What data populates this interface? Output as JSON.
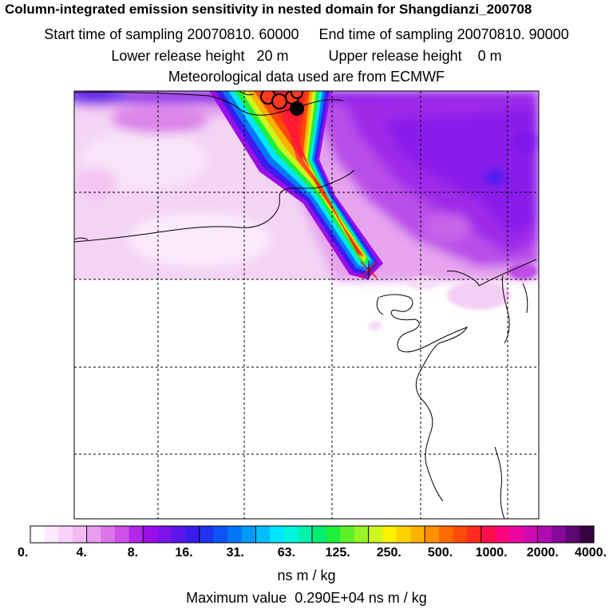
{
  "header": {
    "title": "Column-integrated emission sensitivity in nested domain for Shangdianzi_200708",
    "sampling_line": "Start time of sampling 20070810. 60000     End time of sampling 20070810. 90000",
    "height_line": "Lower release height   20 m          Upper release height    0 m",
    "met_line": "Meteorological data used are from ECMWF"
  },
  "colors": {
    "levels": [
      "#ffffff",
      "#fde8fd",
      "#f8d2f8",
      "#f2bbf2",
      "#ea9dee",
      "#dd75ea",
      "#cc4fe8",
      "#b227e8",
      "#9a0fe9",
      "#7e12ea",
      "#5b16ec",
      "#3a1cef",
      "#1e32f2",
      "#0b54f5",
      "#0077f8",
      "#009bfa",
      "#00c0fb",
      "#00e6fd",
      "#00f5e0",
      "#00f2ac",
      "#00ee72",
      "#1cf03a",
      "#5ef12a",
      "#98f426",
      "#cdf61f",
      "#fcf100",
      "#fed300",
      "#ffb200",
      "#ff9100",
      "#ff6a00",
      "#ff4a0a",
      "#ff2a1c",
      "#ff0f49",
      "#ff057c",
      "#ec05a0",
      "#d008b2",
      "#ad0cb1",
      "#85099a",
      "#5c0671",
      "#360340"
    ]
  },
  "chart_data": {
    "type": "heatmap",
    "title": "Column-integrated emission sensitivity in nested domain for Shangdianzi_200708",
    "variable": "Column-integrated emission sensitivity",
    "station": "Shangdianzi",
    "met_source": "ECMWF",
    "sampling_start": "20070810. 60000",
    "sampling_end": "20070810. 90000",
    "lower_release_height_m": 20,
    "upper_release_height_m": 0,
    "colorbar": {
      "tick_labels": [
        "0.",
        "4.",
        "8.",
        "16.",
        "31.",
        "63.",
        "125.",
        "250.",
        "500.",
        "1000.",
        "2000.",
        "4000."
      ],
      "tick_values": [
        0,
        4,
        8,
        16,
        31,
        63,
        125,
        250,
        500,
        1000,
        2000,
        4000
      ],
      "units": "ns m / kg"
    },
    "maximum_value_text": "Maximum value  0.290E+04 ns m / kg",
    "maximum_value": 2900,
    "plume_axis": [
      {
        "lon_frac": 0.695,
        "lat_frac": 0.0,
        "value": 2000
      },
      {
        "lon_frac": 0.71,
        "lat_frac": 0.08,
        "value": 1500
      },
      {
        "lon_frac": 0.73,
        "lat_frac": 0.2,
        "value": 900
      },
      {
        "lon_frac": 0.77,
        "lat_frac": 0.3,
        "value": 800
      },
      {
        "lon_frac": 0.8,
        "lat_frac": 0.38,
        "value": 600
      }
    ]
  },
  "labels": {
    "units": "ns m / kg",
    "max_line": "Maximum value  0.290E+04 ns m / kg"
  }
}
